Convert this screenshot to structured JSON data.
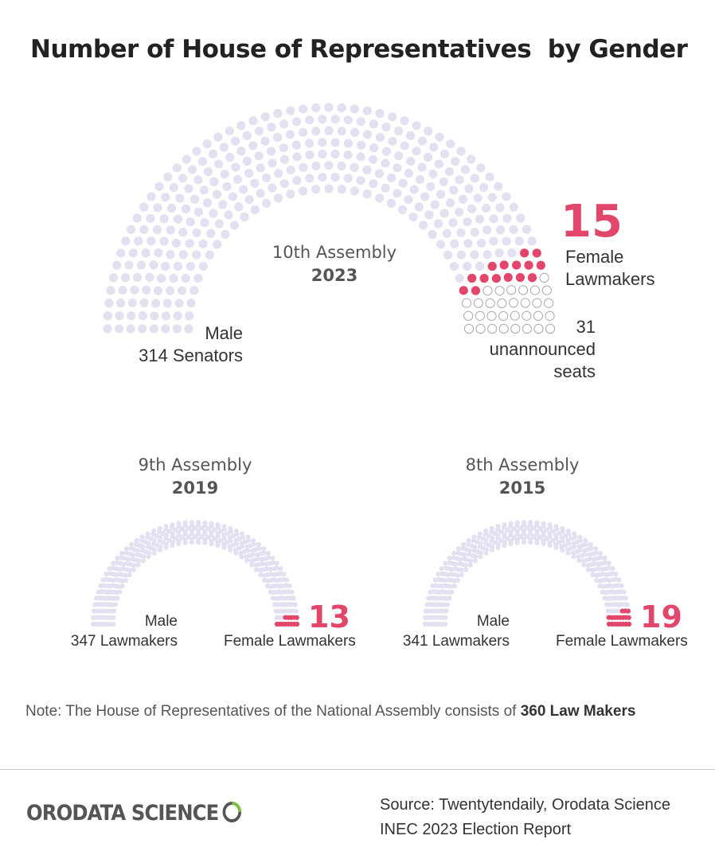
{
  "title": "Number of House of Representatives  by Gender",
  "colors": {
    "male": "#e2e1f1",
    "female": "#e2466a",
    "unannounced_stroke": "#aaaaaa",
    "accent": "#e2466a"
  },
  "chart_data": [
    {
      "type": "parliament",
      "assembly": "10th Assembly",
      "year": "2023",
      "total_seats": 360,
      "series": [
        {
          "name": "Male",
          "value": 314,
          "label_line1": "Male",
          "label_line2": "314 Senators"
        },
        {
          "name": "Female Lawmakers",
          "value": 15,
          "big": "15",
          "label_line1": "Female",
          "label_line2": "Lawmakers"
        },
        {
          "name": "unannounced seats",
          "value": 31,
          "label_line1": "31",
          "label_line2": "unannounced",
          "label_line3": "seats"
        }
      ]
    },
    {
      "type": "parliament",
      "assembly": "9th Assembly",
      "year": "2019",
      "total_seats": 360,
      "series": [
        {
          "name": "Male",
          "value": 347,
          "label_line1": "Male",
          "label_line2": "347 Lawmakers"
        },
        {
          "name": "Female Lawmakers",
          "value": 13,
          "big": "13",
          "label_line1": "Female Lawmakers"
        }
      ]
    },
    {
      "type": "parliament",
      "assembly": "8th Assembly",
      "year": "2015",
      "total_seats": 360,
      "series": [
        {
          "name": "Male",
          "value": 341,
          "label_line1": "Male",
          "label_line2": "341 Lawmakers"
        },
        {
          "name": "Female Lawmakers",
          "value": 19,
          "big": "19",
          "label_line1": "Female Lawmakers"
        }
      ]
    }
  ],
  "note": {
    "prefix": "Note:",
    "text": " The House of Representatives of the National Assembly consists of ",
    "bold": "360 Law Makers"
  },
  "logo": {
    "text": "ORODATA SCIENCE"
  },
  "source": {
    "line1": "Source: Twentytendaily, Orodata Science",
    "line2": "INEC 2023 Election Report"
  }
}
